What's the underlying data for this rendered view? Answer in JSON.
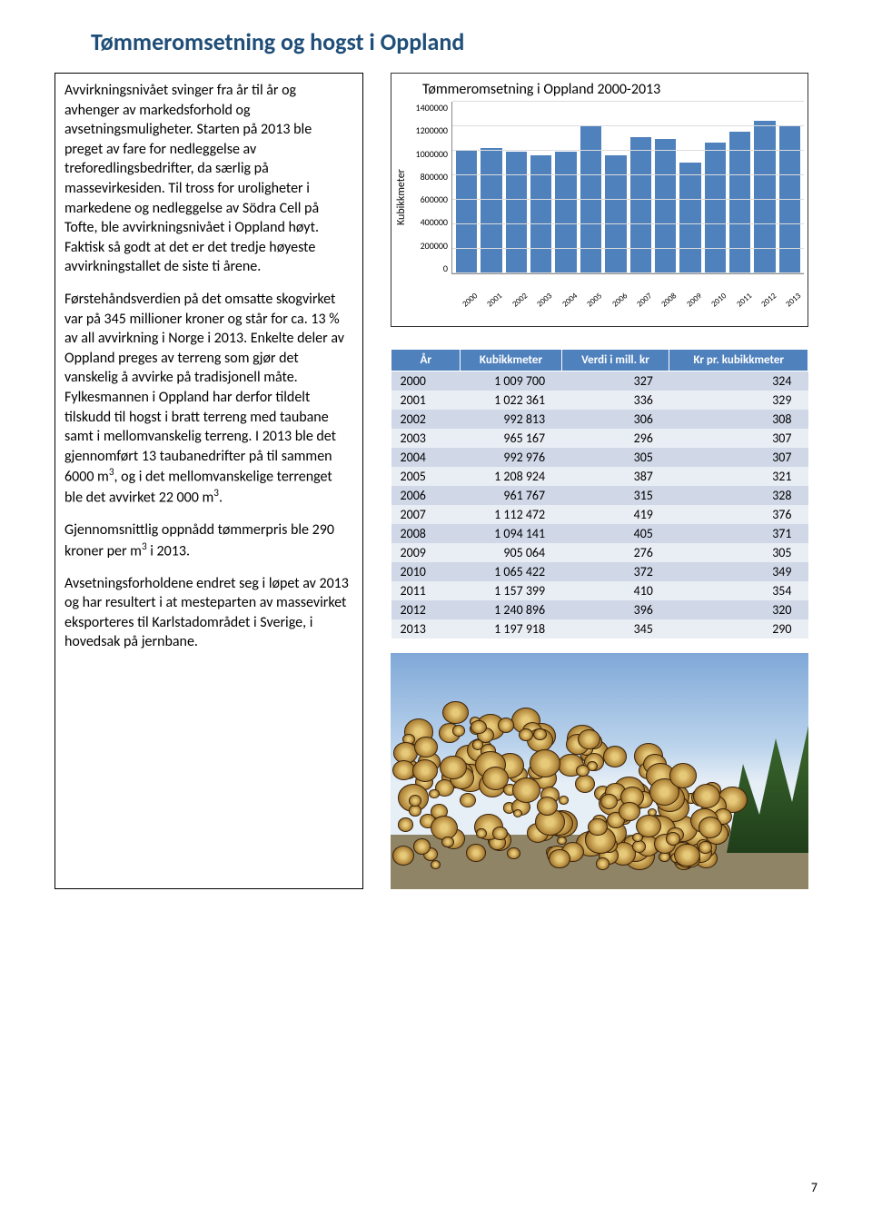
{
  "title": "Tømmeromsetning og hogst i Oppland",
  "body": {
    "p1": "Avvirkningsnivået svinger fra år til år og avhenger av markedsforhold og avsetningsmuligheter. Starten på 2013 ble preget av fare for nedleggelse av treforedlingsbedrifter, da særlig på massevirkesiden. Til tross for uroligheter i markedene og nedleggelse av Södra Cell på Tofte, ble avvirkningsnivået i Oppland høyt. Faktisk så godt at det er det tredje høyeste avvirkningstallet de siste ti årene.",
    "p2a": "Førstehåndsverdien på det omsatte skogvirket var på 345 millioner kroner og står for ca. 13 % av all avvirkning i Norge i 2013. Enkelte deler av Oppland preges av terreng som gjør det vanskelig å avvirke på tradisjonell måte. Fylkesmannen i Oppland har derfor tildelt tilskudd til hogst i bratt terreng med taubane samt i mellomvanskelig terreng. I 2013 ble det gjennomført 13 taubanedrifter på til sammen 6000 m",
    "p2b": ", og i det mellomvanskelige terrenget ble det avvirket 22 000 m",
    "p2c": ".",
    "p3a": "Gjennomsnittlig oppnådd tømmerpris ble 290 kroner per m",
    "p3b": " i 2013.",
    "p4": "Avsetningsforholdene endret seg i løpet av 2013 og har resultert i at mesteparten av massevirket eksporteres til Karlstadområdet i Sverige, i hovedsak på jernbane."
  },
  "chart": {
    "title": "Tømmeromsetning i Oppland 2000-2013",
    "ylabel": "Kubikkmeter",
    "ymax": 1400000,
    "yticks": [
      "1400000",
      "1200000",
      "1000000",
      "800000",
      "600000",
      "400000",
      "200000",
      "0"
    ],
    "bar_color": "#4f81bd",
    "years": [
      "2000",
      "2001",
      "2002",
      "2003",
      "2004",
      "2005",
      "2006",
      "2007",
      "2008",
      "2009",
      "2010",
      "2011",
      "2012",
      "2013"
    ],
    "values": [
      1009700,
      1022361,
      992813,
      965167,
      992976,
      1208924,
      961767,
      1112472,
      1094141,
      905064,
      1065422,
      1157399,
      1240896,
      1197918
    ]
  },
  "table": {
    "headers": {
      "c1": "År",
      "c2": "Kubikkmeter",
      "c3": "Verdi i mill. kr",
      "c4": "Kr pr. kubikkmeter"
    },
    "rows": [
      [
        "2000",
        "1 009 700",
        "327",
        "324"
      ],
      [
        "2001",
        "1 022 361",
        "336",
        "329"
      ],
      [
        "2002",
        "992 813",
        "306",
        "308"
      ],
      [
        "2003",
        "965 167",
        "296",
        "307"
      ],
      [
        "2004",
        "992 976",
        "305",
        "307"
      ],
      [
        "2005",
        "1 208 924",
        "387",
        "321"
      ],
      [
        "2006",
        "961 767",
        "315",
        "328"
      ],
      [
        "2007",
        "1 112 472",
        "419",
        "376"
      ],
      [
        "2008",
        "1 094 141",
        "405",
        "371"
      ],
      [
        "2009",
        "905 064",
        "276",
        "305"
      ],
      [
        "2010",
        "1 065 422",
        "372",
        "349"
      ],
      [
        "2011",
        "1 157 399",
        "410",
        "354"
      ],
      [
        "2012",
        "1 240 896",
        "396",
        "320"
      ],
      [
        "2013",
        "1 197 918",
        "345",
        "290"
      ]
    ]
  },
  "page_number": "7"
}
